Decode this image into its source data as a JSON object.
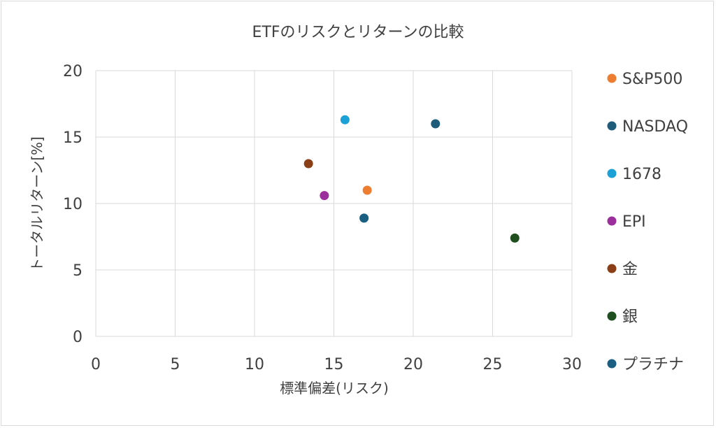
{
  "chart_data": {
    "type": "scatter",
    "title": "ETFのリスクとリターンの比較",
    "xlabel": "標準偏差(リスク)",
    "ylabel": "トータルリターン[%]",
    "xlim": [
      0,
      30
    ],
    "ylim": [
      0,
      20
    ],
    "x_ticks": [
      0,
      5,
      10,
      15,
      20,
      25,
      30
    ],
    "y_ticks": [
      0,
      5,
      10,
      15,
      20
    ],
    "grid": true,
    "legend_position": "right",
    "series": [
      {
        "name": "S&P500",
        "color": "#ED7D31",
        "x": 17.1,
        "y": 11.0
      },
      {
        "name": "NASDAQ",
        "color": "#1F5C7A",
        "x": 21.4,
        "y": 16.0
      },
      {
        "name": "1678",
        "color": "#1BA1D6",
        "x": 15.7,
        "y": 16.3
      },
      {
        "name": "EPI",
        "color": "#9B2F9B",
        "x": 14.4,
        "y": 10.6
      },
      {
        "name": "金",
        "color": "#8B3F16",
        "x": 13.4,
        "y": 13.0
      },
      {
        "name": "銀",
        "color": "#1F4E1F",
        "x": 26.4,
        "y": 7.4
      },
      {
        "name": "プラチナ",
        "color": "#1A5F82",
        "x": 16.9,
        "y": 8.9
      }
    ]
  }
}
